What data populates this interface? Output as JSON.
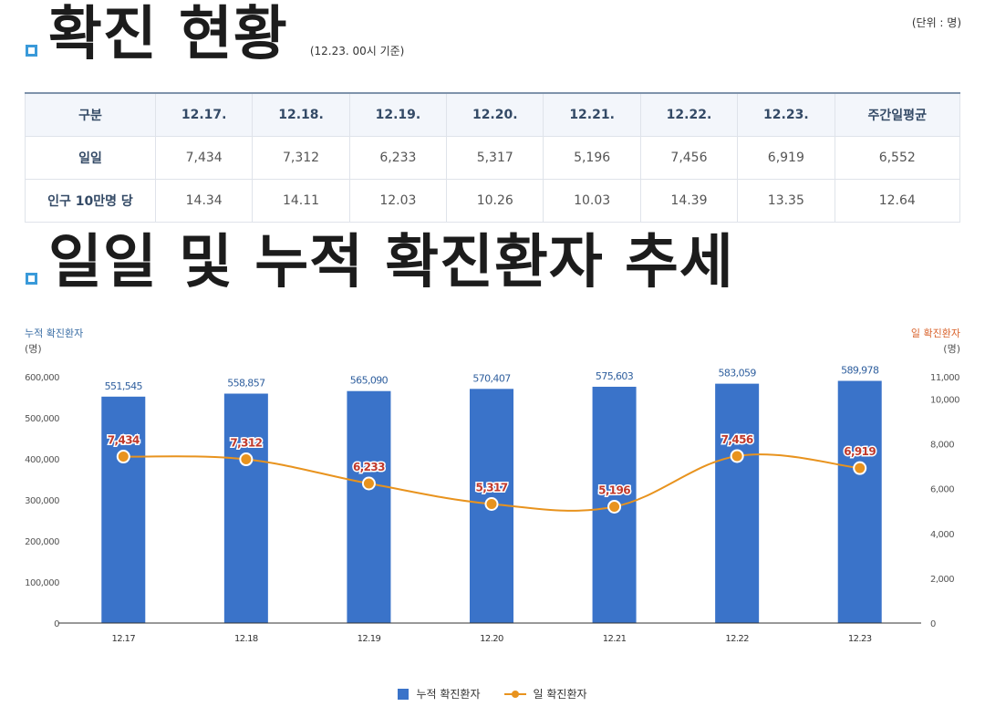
{
  "section1": {
    "title": "확진 현황",
    "basis": "(12.23. 00시 기준)",
    "unit": "(단위 : 명)"
  },
  "table": {
    "headers": [
      "구분",
      "12.17.",
      "12.18.",
      "12.19.",
      "12.20.",
      "12.21.",
      "12.22.",
      "12.23.",
      "주간일평균"
    ],
    "rows": [
      {
        "label": "일일",
        "cells": [
          "7,434",
          "7,312",
          "6,233",
          "5,317",
          "5,196",
          "7,456",
          "6,919",
          "6,552"
        ]
      },
      {
        "label": "인구 10만명 당",
        "cells": [
          "14.34",
          "14.11",
          "12.03",
          "10.26",
          "10.03",
          "14.39",
          "13.35",
          "12.64"
        ]
      }
    ]
  },
  "section2": {
    "title": "일일 및 누적 확진환자 추세"
  },
  "chart_data": {
    "type": "bar",
    "categories": [
      "12.17",
      "12.18",
      "12.19",
      "12.20",
      "12.21",
      "12.22",
      "12.23"
    ],
    "left_axis": {
      "label": "누적 확진환자",
      "unit": "(명)",
      "ylim": [
        0,
        600000
      ],
      "ticks": [
        "0",
        "100,000",
        "200,000",
        "300,000",
        "400,000",
        "500,000",
        "600,000"
      ],
      "tick_values": [
        0,
        100000,
        200000,
        300000,
        400000,
        500000,
        600000
      ]
    },
    "right_axis": {
      "label": "일 확진환자",
      "unit": "(명)",
      "ylim": [
        0,
        11000
      ],
      "ticks": [
        "0",
        "2,000",
        "4,000",
        "6,000",
        "8,000",
        "10,000",
        "11,000"
      ],
      "tick_values": [
        0,
        2000,
        4000,
        6000,
        8000,
        10000,
        11000
      ]
    },
    "series": [
      {
        "name": "누적 확진환자",
        "type": "bar",
        "axis": "left",
        "color": "#3a73c9",
        "values": [
          551545,
          558857,
          565090,
          570407,
          575603,
          583059,
          589978
        ],
        "labels": [
          "551,545",
          "558,857",
          "565,090",
          "570,407",
          "575,603",
          "583,059",
          "589,978"
        ]
      },
      {
        "name": "일 확진환자",
        "type": "line",
        "axis": "right",
        "color": "#e8931e",
        "values": [
          7434,
          7312,
          6233,
          5317,
          5196,
          7456,
          6919
        ],
        "labels": [
          "7,434",
          "7,312",
          "6,233",
          "5,317",
          "5,196",
          "7,456",
          "6,919"
        ]
      }
    ],
    "label_colors": {
      "bar": "#2f5f9e",
      "line": "#c0392b",
      "left_axis": "#3a6ea5",
      "right_axis": "#d9622b"
    },
    "grid": false,
    "legend": "bottom"
  }
}
